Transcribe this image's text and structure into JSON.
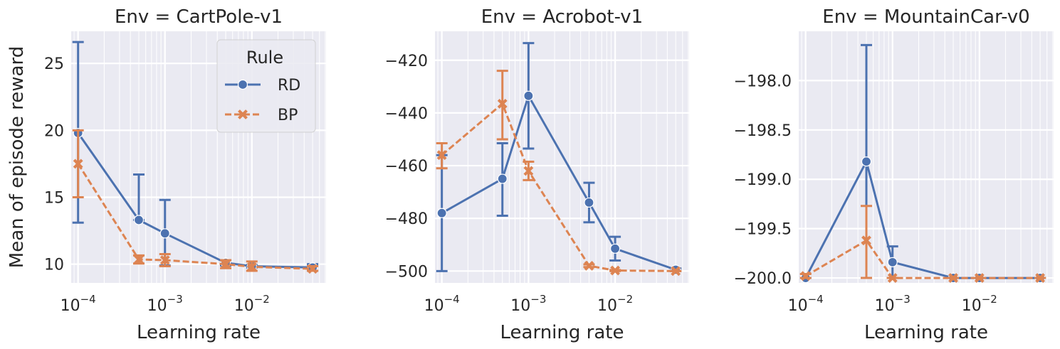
{
  "colors": {
    "background": "#eaeaf2",
    "grid": "#ffffff",
    "RD": "#4c72b0",
    "BP": "#dd8452",
    "text": "#262626"
  },
  "legend": {
    "title": "Rule",
    "entries": [
      "RD",
      "BP"
    ],
    "placement": "top-right of first panel"
  },
  "chart_data": [
    {
      "type": "line",
      "title": "Env = CartPole-v1",
      "xlabel": "Learning rate",
      "ylabel": "Mean of episode reward",
      "xscale": "log",
      "xlim": [
        8.33e-05,
        0.0714
      ],
      "ylim": [
        8.6,
        27.4
      ],
      "xticks": [
        0.0001,
        0.001,
        0.01
      ],
      "xtick_labels": [
        {
          "base": "10",
          "exp": "−4"
        },
        {
          "base": "10",
          "exp": "−3"
        },
        {
          "base": "10",
          "exp": "−2"
        }
      ],
      "yticks": [
        10,
        15,
        20,
        25
      ],
      "ytick_labels": [
        "10",
        "15",
        "20",
        "25"
      ],
      "grid": true,
      "x": [
        0.0001,
        0.0005,
        0.001,
        0.005,
        0.01,
        0.05
      ],
      "series": [
        {
          "name": "RD",
          "marker": "circle",
          "dash": false,
          "values": [
            19.8,
            13.3,
            12.3,
            10.1,
            9.85,
            9.75
          ],
          "err_low": [
            13.1,
            13.3,
            9.9,
            9.9,
            9.75,
            9.5
          ],
          "err_high": [
            26.6,
            16.7,
            14.8,
            10.3,
            9.95,
            10.0
          ]
        },
        {
          "name": "BP",
          "marker": "x",
          "dash": true,
          "values": [
            17.5,
            10.35,
            10.3,
            10.0,
            9.8,
            9.65
          ],
          "err_low": [
            15.0,
            10.05,
            9.85,
            9.7,
            9.5,
            9.5
          ],
          "err_high": [
            20.0,
            10.65,
            10.75,
            10.3,
            10.2,
            9.85
          ]
        }
      ]
    },
    {
      "type": "line",
      "title": "Env = Acrobot-v1",
      "xlabel": "Learning rate",
      "ylabel": "",
      "xscale": "log",
      "xlim": [
        8.33e-05,
        0.0714
      ],
      "ylim": [
        -504.5,
        -409.0
      ],
      "xticks": [
        0.0001,
        0.001,
        0.01
      ],
      "xtick_labels": [
        {
          "base": "10",
          "exp": "−4"
        },
        {
          "base": "10",
          "exp": "−3"
        },
        {
          "base": "10",
          "exp": "−2"
        }
      ],
      "yticks": [
        -500,
        -480,
        -460,
        -440,
        -420
      ],
      "ytick_labels": [
        "−500",
        "−480",
        "−460",
        "−440",
        "−420"
      ],
      "grid": true,
      "x": [
        0.0001,
        0.0005,
        0.001,
        0.005,
        0.01,
        0.05
      ],
      "series": [
        {
          "name": "RD",
          "marker": "circle",
          "dash": false,
          "values": [
            -478,
            -465,
            -433.5,
            -474,
            -491.5,
            -499.5
          ],
          "err_low": [
            -500,
            -479,
            -453.5,
            -481.5,
            -496,
            -500
          ],
          "err_high": [
            -456,
            -451.5,
            -413.5,
            -466.5,
            -487,
            -499
          ]
        },
        {
          "name": "BP",
          "marker": "x",
          "dash": true,
          "values": [
            -456,
            -436.5,
            -462,
            -498,
            -499.8,
            -500
          ],
          "err_low": [
            -461,
            -450,
            -465.5,
            -498.5,
            -500,
            -500
          ],
          "err_high": [
            -451.5,
            -424,
            -458.5,
            -497.5,
            -499.6,
            -500
          ]
        }
      ]
    },
    {
      "type": "line",
      "title": "Env = MountainCar-v0",
      "xlabel": "Learning rate",
      "ylabel": "",
      "xscale": "log",
      "xlim": [
        8.33e-05,
        0.0714
      ],
      "ylim": [
        -200.05,
        -197.5
      ],
      "xticks": [
        0.0001,
        0.001,
        0.01
      ],
      "xtick_labels": [
        {
          "base": "10",
          "exp": "−4"
        },
        {
          "base": "10",
          "exp": "−3"
        },
        {
          "base": "10",
          "exp": "−2"
        }
      ],
      "yticks": [
        -200.0,
        -199.5,
        -199.0,
        -198.5,
        -198.0
      ],
      "ytick_labels": [
        "−200.0",
        "−199.5",
        "−199.0",
        "−198.5",
        "−198.0"
      ],
      "grid": true,
      "x": [
        0.0001,
        0.0005,
        0.001,
        0.005,
        0.01,
        0.05
      ],
      "series": [
        {
          "name": "RD",
          "marker": "circle",
          "dash": false,
          "values": [
            -200.0,
            -198.82,
            -199.84,
            -200.0,
            -200.0,
            -200.0
          ],
          "err_low": [
            -200.0,
            -200.0,
            -200.0,
            -200.0,
            -200.0,
            -200.0
          ],
          "err_high": [
            -200.0,
            -197.64,
            -199.68,
            -200.0,
            -200.0,
            -200.0
          ]
        },
        {
          "name": "BP",
          "marker": "x",
          "dash": true,
          "values": [
            -199.98,
            -199.62,
            -200.0,
            -200.0,
            -200.0,
            -200.0
          ],
          "err_low": [
            -200.0,
            -200.0,
            -200.0,
            -200.0,
            -200.0,
            -200.0
          ],
          "err_high": [
            -199.96,
            -199.27,
            -200.0,
            -200.0,
            -200.0,
            -200.0
          ]
        }
      ]
    }
  ]
}
